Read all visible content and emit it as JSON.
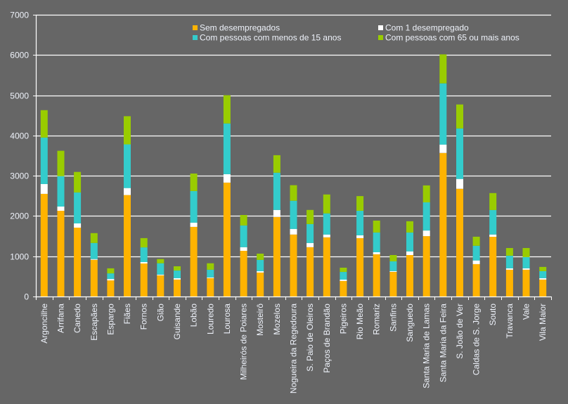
{
  "chart_data": {
    "type": "bar",
    "stacked": true,
    "title": "",
    "xlabel": "",
    "ylabel": "",
    "ylim": [
      0,
      7000
    ],
    "yticks": [
      "0",
      "1000",
      "2000",
      "3000",
      "4000",
      "5000",
      "6000",
      "7000"
    ],
    "grid": true,
    "legend_position": "top-right",
    "categories": [
      "Argoncilhe",
      "Arrifana",
      "Canedo",
      "Escapães",
      "Espargo",
      "Fiães",
      "Fornos",
      "Gião",
      "Guisande",
      "Lobão",
      "Louredo",
      "Lourosa",
      "Milheirós de Poiares",
      "Mosteirô",
      "Mozelos",
      "Nogueira da Regedoura",
      "S. Paio de Oleiros",
      "Paços de Brandão",
      "Pigeiros",
      "Rio Meão",
      "Romariz",
      "Sanfins",
      "Sanguedo",
      "Santa Maria de Lamas",
      "Santa Maria da Feira",
      "S. João de Ver",
      "Caldas de S. Jorge",
      "Souto",
      "Travanca",
      "Vale",
      "Vila Maior"
    ],
    "series": [
      {
        "name": "Sem desempregados",
        "color": "#FFB300",
        "values": [
          2550,
          2130,
          1710,
          910,
          400,
          2520,
          820,
          525,
          420,
          1730,
          455,
          2830,
          1135,
          595,
          1975,
          1540,
          1225,
          1470,
          385,
          1450,
          1050,
          610,
          1030,
          1500,
          3565,
          2675,
          805,
          1485,
          665,
          665,
          420
        ]
      },
      {
        "name": "Com 1 desempregado",
        "color": "#FFFFFF",
        "values": [
          245,
          105,
          105,
          20,
          35,
          175,
          35,
          20,
          35,
          105,
          20,
          210,
          90,
          35,
          175,
          140,
          105,
          70,
          35,
          70,
          50,
          20,
          90,
          140,
          210,
          245,
          90,
          55,
          35,
          35,
          35
        ]
      },
      {
        "name": "Com pessoas com menos de 15 anos",
        "color": "#33CCCC",
        "values": [
          1155,
          755,
          770,
          400,
          140,
          1085,
          365,
          280,
          190,
          785,
          190,
          1260,
          540,
          280,
          925,
          700,
          470,
          525,
          190,
          610,
          490,
          245,
          470,
          700,
          1520,
          1255,
          365,
          610,
          315,
          280,
          175
        ]
      },
      {
        "name": "Com pessoas com 65 ou mais anos",
        "color": "#99CC00",
        "values": [
          680,
          630,
          510,
          245,
          125,
          700,
          230,
          105,
          105,
          435,
          160,
          700,
          260,
          155,
          435,
          385,
          350,
          470,
          105,
          365,
          295,
          155,
          280,
          420,
          720,
          595,
          225,
          420,
          190,
          225,
          105
        ]
      }
    ]
  }
}
